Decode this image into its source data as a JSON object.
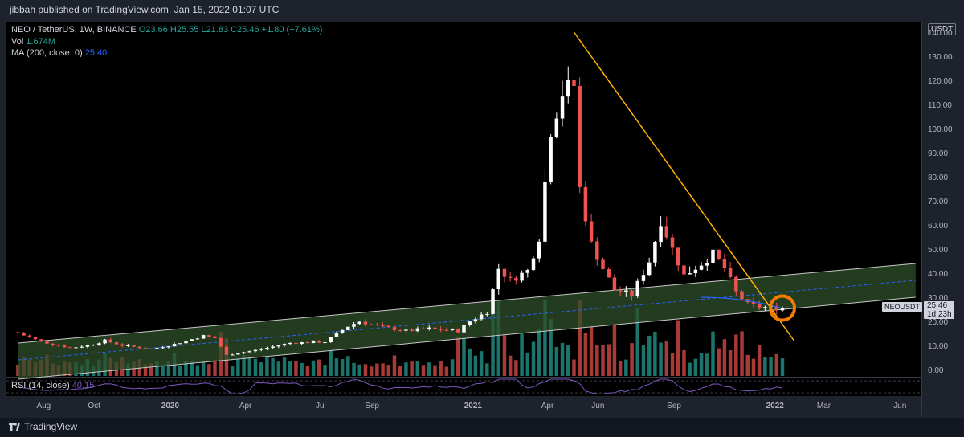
{
  "publisher": "jibbah published on TradingView.com, Jan 15, 2022 01:07 UTC",
  "legend": {
    "title": "NEO / TetherUS, 1W, BINANCE",
    "ohlc": "O23.66  H25.55  L21.83  C25.46  +1.80 (+7.61%)",
    "vol_label": "Vol",
    "vol_value": "1.674M",
    "ma_label": "MA (200, close, 0)",
    "ma_value": "25.40"
  },
  "rsi": {
    "label": "RSI (14, close)",
    "value": "40.15"
  },
  "price_axis": {
    "badge": "USDT",
    "tag_price": "25.46",
    "tag_countdown": "1d 23h",
    "symbol_tag": "NEOUSDT"
  },
  "brand": "TradingView",
  "colors": {
    "up": "#ffffff",
    "down": "#ef5350",
    "vol_up": "#26a69a",
    "vol_down": "#ef5350",
    "channel_fill": "#2f4f2a",
    "trendline": "#ffb300",
    "ma": "#2962ff",
    "rsi": "#7e57c2",
    "highlight": "#f57c00"
  },
  "chart_data": {
    "type": "candlestick",
    "title": "NEO / TetherUS, 1W, BINANCE",
    "y_ticks": [
      0,
      10,
      20,
      30,
      40,
      50,
      60,
      70,
      80,
      90,
      100,
      110,
      120,
      130,
      140
    ],
    "y_tick_labels": [
      "0.00",
      "10.00",
      "20.00",
      "30.00",
      "40.00",
      "50.00",
      "60.00",
      "70.00",
      "80.00",
      "90.00",
      "100.00",
      "110.00",
      "120.00",
      "130.00",
      "140.00"
    ],
    "ylim": [
      -3,
      144
    ],
    "x_ticks": [
      {
        "label": "Aug",
        "date": "2019-08-01"
      },
      {
        "label": "Oct",
        "date": "2019-10-01"
      },
      {
        "label": "2020",
        "date": "2020-01-01"
      },
      {
        "label": "Apr",
        "date": "2020-04-01"
      },
      {
        "label": "Jul",
        "date": "2020-07-01"
      },
      {
        "label": "Sep",
        "date": "2020-09-01"
      },
      {
        "label": "2021",
        "date": "2021-01-01"
      },
      {
        "label": "Apr",
        "date": "2021-04-01"
      },
      {
        "label": "Jun",
        "date": "2021-06-01"
      },
      {
        "label": "Sep",
        "date": "2021-09-01"
      },
      {
        "label": "2022",
        "date": "2022-01-01"
      },
      {
        "label": "Mar",
        "date": "2022-03-01"
      },
      {
        "label": "Jun",
        "date": "2022-06-01"
      }
    ],
    "candle_anchors": [
      {
        "date": "2019-07-01",
        "price": 16
      },
      {
        "date": "2019-08-05",
        "price": 11.5
      },
      {
        "date": "2019-09-09",
        "price": 9
      },
      {
        "date": "2019-10-01",
        "price": 10
      },
      {
        "date": "2019-10-21",
        "price": 12
      },
      {
        "date": "2019-11-11",
        "price": 10
      },
      {
        "date": "2019-12-16",
        "price": 8.5
      },
      {
        "date": "2020-01-13",
        "price": 10.5
      },
      {
        "date": "2020-02-17",
        "price": 14
      },
      {
        "date": "2020-03-02",
        "price": 13
      },
      {
        "date": "2020-03-16",
        "price": 6
      },
      {
        "date": "2020-04-20",
        "price": 8
      },
      {
        "date": "2020-06-01",
        "price": 11
      },
      {
        "date": "2020-07-13",
        "price": 11.5
      },
      {
        "date": "2020-08-10",
        "price": 18
      },
      {
        "date": "2020-08-24",
        "price": 20
      },
      {
        "date": "2020-09-14",
        "price": 18
      },
      {
        "date": "2020-10-19",
        "price": 16
      },
      {
        "date": "2020-11-16",
        "price": 17
      },
      {
        "date": "2020-12-21",
        "price": 16
      },
      {
        "date": "2021-01-04",
        "price": 20
      },
      {
        "date": "2021-01-25",
        "price": 24
      },
      {
        "date": "2021-02-08",
        "price": 42
      },
      {
        "date": "2021-02-22",
        "price": 37
      },
      {
        "date": "2021-03-15",
        "price": 41
      },
      {
        "date": "2021-03-29",
        "price": 55
      },
      {
        "date": "2021-04-12",
        "price": 100
      },
      {
        "date": "2021-04-26",
        "price": 115
      },
      {
        "date": "2021-05-10",
        "price": 118
      },
      {
        "date": "2021-05-17",
        "price": 75
      },
      {
        "date": "2021-05-31",
        "price": 52
      },
      {
        "date": "2021-06-14",
        "price": 42
      },
      {
        "date": "2021-06-28",
        "price": 33
      },
      {
        "date": "2021-07-19",
        "price": 31
      },
      {
        "date": "2021-08-09",
        "price": 45
      },
      {
        "date": "2021-08-23",
        "price": 62
      },
      {
        "date": "2021-09-06",
        "price": 50
      },
      {
        "date": "2021-09-20",
        "price": 39
      },
      {
        "date": "2021-10-11",
        "price": 44
      },
      {
        "date": "2021-10-25",
        "price": 48
      },
      {
        "date": "2021-11-08",
        "price": 42
      },
      {
        "date": "2021-11-22",
        "price": 32
      },
      {
        "date": "2021-12-06",
        "price": 27
      },
      {
        "date": "2021-12-20",
        "price": 26
      },
      {
        "date": "2022-01-10",
        "price": 25.46
      }
    ],
    "channel": {
      "upper": [
        {
          "date": "2019-07-01",
          "price": 11
        },
        {
          "date": "2022-06-20",
          "price": 44
        }
      ],
      "lower": [
        {
          "date": "2019-07-01",
          "price": -4
        },
        {
          "date": "2022-06-20",
          "price": 30
        }
      ],
      "mid": [
        {
          "date": "2019-07-01",
          "price": 4
        },
        {
          "date": "2022-06-20",
          "price": 37
        }
      ]
    },
    "trendline": [
      {
        "date": "2021-05-03",
        "price": 140
      },
      {
        "date": "2022-01-24",
        "price": 12
      }
    ],
    "highlight_circle": {
      "date": "2022-01-10",
      "price": 25.5
    },
    "last_price": 25.46,
    "ma_200_value": 25.4,
    "rsi_value": 40.15,
    "legend_placement": "top-left"
  }
}
